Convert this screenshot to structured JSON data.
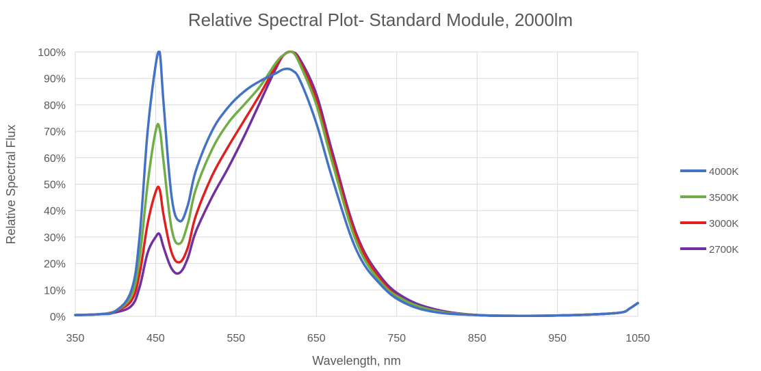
{
  "chart_data": {
    "type": "line",
    "title": "Relative Spectral Plot- Standard Module, 2000lm",
    "xlabel": "Wavelength, nm",
    "ylabel": "Relative Spectral Flux",
    "xlim": [
      350,
      1050
    ],
    "ylim": [
      0,
      100
    ],
    "x_ticks": [
      350,
      450,
      550,
      650,
      750,
      850,
      950,
      1050
    ],
    "y_ticks": [
      0,
      10,
      20,
      30,
      40,
      50,
      60,
      70,
      80,
      90,
      100
    ],
    "y_tick_labels": [
      "0%",
      "10%",
      "20%",
      "30%",
      "40%",
      "50%",
      "60%",
      "70%",
      "80%",
      "90%",
      "100%"
    ],
    "grid": "vertical and horizontal",
    "legend_position": "right",
    "x": [
      350,
      380,
      400,
      420,
      430,
      440,
      450,
      455,
      460,
      470,
      480,
      490,
      500,
      520,
      540,
      560,
      580,
      600,
      610,
      620,
      630,
      650,
      670,
      700,
      730,
      760,
      800,
      850,
      900,
      950,
      1000,
      1030,
      1040,
      1050
    ],
    "series": [
      {
        "name": "4000K",
        "color": "#4472C4",
        "values": [
          0.5,
          0.8,
          2,
          10,
          30,
          70,
          95,
          100,
          80,
          45,
          36,
          42,
          55,
          70,
          79,
          85,
          89,
          92,
          93.5,
          93,
          89,
          73,
          52,
          25,
          12,
          5,
          1.5,
          0.5,
          0.2,
          0.3,
          0.8,
          1.5,
          3,
          5
        ]
      },
      {
        "name": "3500K",
        "color": "#70AD47",
        "values": [
          0.5,
          0.8,
          2,
          8,
          22,
          50,
          70,
          71,
          58,
          33,
          27.5,
          35,
          48,
          63,
          73,
          80,
          87,
          96,
          99,
          100,
          95,
          80,
          58,
          28,
          13,
          6,
          2,
          0.5,
          0.2,
          0.3,
          0.8,
          1.5,
          3,
          5
        ]
      },
      {
        "name": "3000K",
        "color": "#E02020",
        "values": [
          0.5,
          0.8,
          2,
          6,
          16,
          35,
          47,
          48,
          38,
          24,
          20.5,
          26,
          38,
          53,
          64,
          74,
          84,
          95,
          99,
          100,
          96,
          82,
          60,
          30,
          14,
          6,
          2,
          0.5,
          0.2,
          0.3,
          0.8,
          1.5,
          3,
          5
        ]
      },
      {
        "name": "2700K",
        "color": "#7030A0",
        "values": [
          0.5,
          0.8,
          1.5,
          4,
          11,
          24,
          30,
          31,
          26,
          18,
          16.5,
          22,
          32,
          45,
          56,
          68,
          81,
          94,
          99,
          100,
          97,
          84,
          62,
          31,
          15,
          7,
          2.5,
          0.5,
          0.2,
          0.3,
          0.8,
          1.5,
          3,
          5
        ]
      }
    ]
  }
}
